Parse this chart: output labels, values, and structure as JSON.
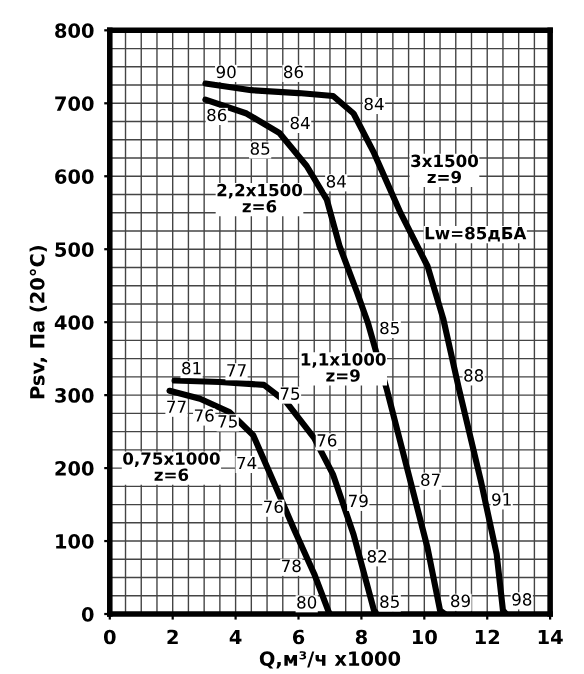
{
  "chart_data": {
    "type": "line",
    "xlabel": "Q,м³/ч x1000",
    "ylabel": "Psv, Па (20°C)",
    "xlim": [
      0,
      14
    ],
    "xticks": [
      0,
      2,
      4,
      6,
      8,
      10,
      12,
      14
    ],
    "ylim": [
      0,
      800
    ],
    "yticks": [
      0,
      100,
      200,
      300,
      400,
      500,
      600,
      700,
      800
    ],
    "grid": true,
    "marker": "none",
    "line_style": "solid",
    "series": [
      {
        "color": "#000000",
        "x": [
          3.04,
          4.5,
          6.0,
          7.1,
          7.75,
          8.4,
          9.24,
          10.1,
          10.6,
          11.1,
          11.8,
          12.3,
          12.5,
          12.6
        ],
        "values": [
          727,
          718,
          714,
          710,
          686,
          632,
          550,
          477,
          405,
          309,
          182,
          82,
          5,
          0
        ]
      },
      {
        "color": "#000000",
        "x": [
          3.04,
          4.35,
          5.4,
          6.26,
          6.9,
          7.3,
          7.86,
          8.2,
          8.8,
          9.45,
          10.1,
          10.5,
          10.65
        ],
        "values": [
          705,
          686,
          659,
          614,
          568,
          505,
          441,
          400,
          309,
          200,
          91,
          5,
          0
        ]
      },
      {
        "color": "#000000",
        "x": [
          2.06,
          3.5,
          4.9,
          5.6,
          6.5,
          7.1,
          7.75,
          8.4,
          8.5
        ],
        "values": [
          320,
          318,
          314,
          291,
          241,
          191,
          109,
          5,
          0
        ]
      },
      {
        "color": "#000000",
        "x": [
          1.9,
          2.87,
          3.8,
          4.56,
          5.2,
          5.84,
          6.5,
          6.96,
          7.0
        ],
        "values": [
          306,
          295,
          277,
          245,
          182,
          118,
          55,
          3,
          0
        ]
      }
    ],
    "annotations": [
      {
        "text": "90",
        "x": 3.7,
        "y": 741
      },
      {
        "text": "86",
        "x": 5.84,
        "y": 741
      },
      {
        "text": "84",
        "x": 8.4,
        "y": 697
      },
      {
        "text": "86",
        "x": 3.4,
        "y": 682
      },
      {
        "text": "84",
        "x": 6.05,
        "y": 671
      },
      {
        "text": "85",
        "x": 4.78,
        "y": 636
      },
      {
        "text": "84",
        "x": 7.2,
        "y": 591
      },
      "3x1500\nz=9",
      "2,2x1500\nz=6",
      "Lw=85дБА",
      {
        "text": "85",
        "x": 8.9,
        "y": 390
      },
      {
        "text": "88",
        "x": 11.57,
        "y": 325
      },
      {
        "text": "81",
        "x": 2.6,
        "y": 335
      },
      {
        "text": "77",
        "x": 4.03,
        "y": 332
      },
      {
        "text": "75",
        "x": 5.73,
        "y": 300
      },
      "1,1x1000\nz=9",
      {
        "text": "77",
        "x": 2.12,
        "y": 282
      },
      {
        "text": "76",
        "x": 3.0,
        "y": 270
      },
      {
        "text": "75",
        "x": 3.75,
        "y": 262
      },
      {
        "text": "76",
        "x": 6.9,
        "y": 236
      },
      {
        "text": "74",
        "x": 4.35,
        "y": 205
      },
      "0,75x1000\nz=6",
      {
        "text": "87",
        "x": 10.2,
        "y": 182
      },
      {
        "text": "91",
        "x": 12.46,
        "y": 155
      },
      {
        "text": "79",
        "x": 7.9,
        "y": 153
      },
      {
        "text": "76",
        "x": 5.2,
        "y": 145
      },
      {
        "text": "82",
        "x": 8.5,
        "y": 77
      },
      {
        "text": "78",
        "x": 5.77,
        "y": 64
      },
      {
        "text": "80",
        "x": 6.26,
        "y": 14
      },
      {
        "text": "85",
        "x": 8.9,
        "y": 15
      },
      {
        "text": "89",
        "x": 11.15,
        "y": 16
      },
      {
        "text": "98",
        "x": 13.1,
        "y": 18
      }
    ]
  }
}
